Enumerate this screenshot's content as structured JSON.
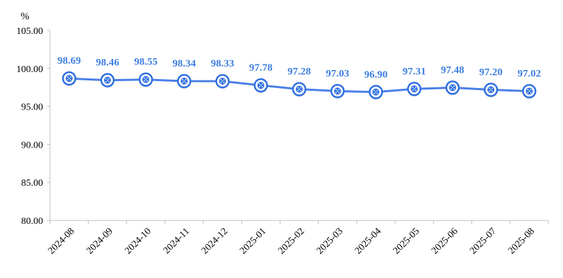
{
  "chart_data": {
    "type": "line",
    "unit": "%",
    "categories": [
      "2024-08",
      "2024-09",
      "2024-10",
      "2024-11",
      "2024-12",
      "2025-01",
      "2025-02",
      "2025-03",
      "2025-04",
      "2025-05",
      "2025-06",
      "2025-07",
      "2025-08"
    ],
    "values": [
      98.69,
      98.46,
      98.55,
      98.34,
      98.33,
      97.78,
      97.28,
      97.03,
      96.9,
      97.31,
      97.48,
      97.2,
      97.02
    ],
    "value_labels": [
      "98.69",
      "98.46",
      "98.55",
      "98.34",
      "98.33",
      "97.78",
      "97.28",
      "97.03",
      "96.90",
      "97.31",
      "97.48",
      "97.20",
      "97.02"
    ],
    "yticks": [
      "80.00",
      "85.00",
      "90.00",
      "95.00",
      "100.00",
      "105.00"
    ],
    "ylim": [
      80,
      105
    ],
    "grid": false,
    "colors": {
      "line": "#4A7FE8",
      "marker": "#2F6FE0",
      "label": "#3F7FE0"
    }
  }
}
